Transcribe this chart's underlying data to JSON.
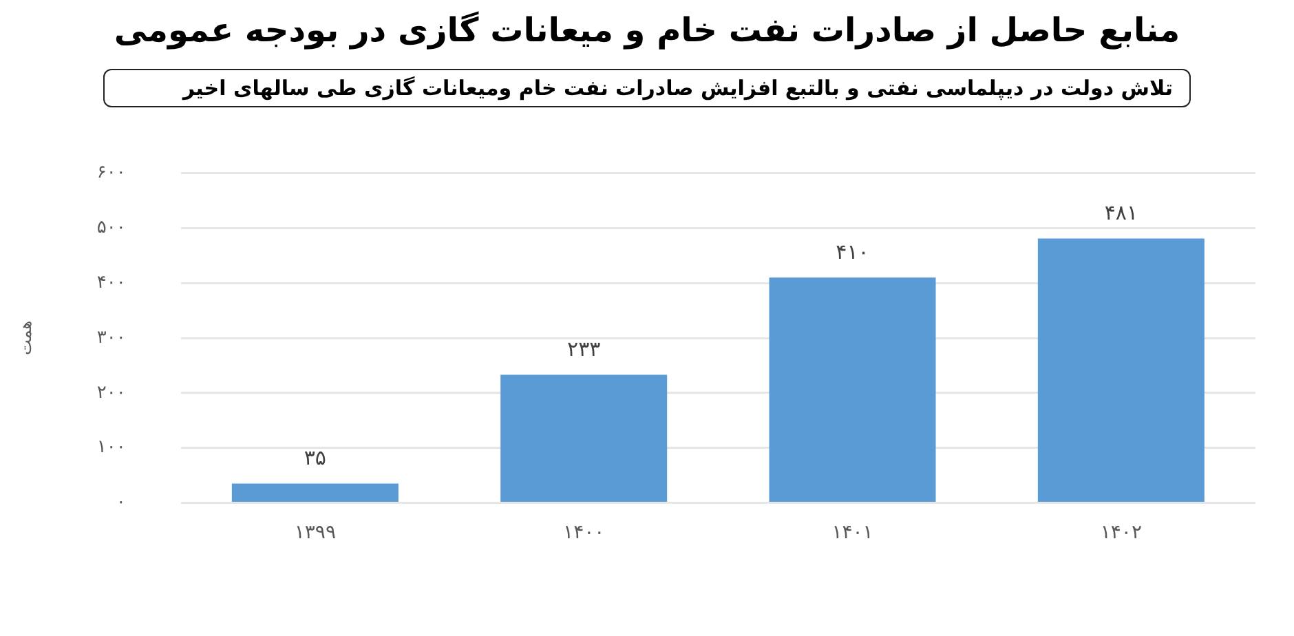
{
  "chart_data": {
    "type": "bar",
    "title": "منابع حاصل از صادرات نفت خام و میعانات گازی در بودجه عمومی",
    "subtitle": "تلاش دولت در دیپلماسی نفتی و بالتبع افزایش صادرات نفت خام ومیعانات گازی طی سالهای اخیر",
    "ylabel": "همت",
    "categories": [
      "۱۳۹۹",
      "۱۴۰۰",
      "۱۴۰۱",
      "۱۴۰۲"
    ],
    "values": [
      35,
      233,
      410,
      481
    ],
    "value_labels": [
      "۳۵",
      "۲۳۳",
      "۴۱۰",
      "۴۸۱"
    ],
    "color": "#5b9bd5",
    "ylim": [
      0,
      600
    ],
    "yticks": [
      {
        "value": 0,
        "label": "۰"
      },
      {
        "value": 100,
        "label": "۱۰۰"
      },
      {
        "value": 200,
        "label": "۲۰۰"
      },
      {
        "value": 300,
        "label": "۳۰۰"
      },
      {
        "value": 400,
        "label": "۴۰۰"
      },
      {
        "value": 500,
        "label": "۵۰۰"
      },
      {
        "value": 600,
        "label": "۶۰۰"
      }
    ],
    "grid": "y",
    "legend": false
  }
}
